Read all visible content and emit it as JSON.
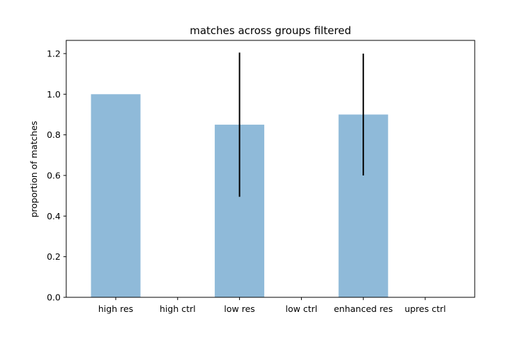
{
  "chart_data": {
    "type": "bar",
    "title": "matches across groups filtered",
    "xlabel": "",
    "ylabel": "proportion of matches",
    "categories": [
      "high res",
      "high ctrl",
      "low res",
      "low ctrl",
      "enhanced res",
      "upres ctrl"
    ],
    "values": [
      1.0,
      0.0,
      0.85,
      0.0,
      0.9,
      0.0
    ],
    "error_bars": [
      0.0,
      0.0,
      0.355,
      0.0,
      0.3,
      0.0
    ],
    "ylim": [
      0,
      1.265
    ],
    "yticks": [
      0.0,
      0.2,
      0.4,
      0.6,
      0.8,
      1.0,
      1.2
    ],
    "ytick_labels": [
      "0.0",
      "0.2",
      "0.4",
      "0.6",
      "0.8",
      "1.0",
      "1.2"
    ],
    "bar_color": "#8fbad9",
    "error_color": "#000000",
    "grid": false,
    "legend": "none"
  }
}
